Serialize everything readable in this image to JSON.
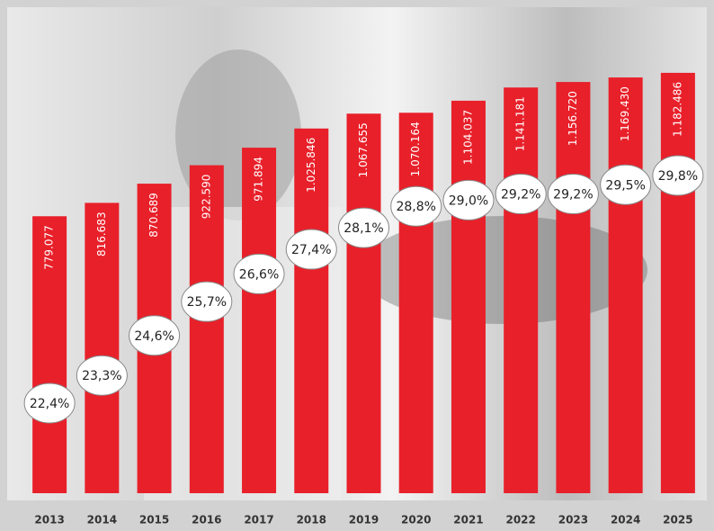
{
  "chart_data": {
    "type": "bar",
    "categories": [
      "2013",
      "2014",
      "2015",
      "2016",
      "2017",
      "2018",
      "2019",
      "2020",
      "2021",
      "2022",
      "2023",
      "2024",
      "2025"
    ],
    "series": [
      {
        "type": "bar",
        "color": "#e8202a",
        "values": [
          779077,
          816683,
          870689,
          922590,
          971894,
          1025846,
          1067655,
          1070164,
          1104037,
          1141181,
          1156720,
          1169430,
          1182486
        ],
        "value_labels": [
          "779.077",
          "816.683",
          "870.689",
          "922.590",
          "971.894",
          "1.025.846",
          "1.067.655",
          "1.070.164",
          "1.104.037",
          "1.141.181",
          "1.156.720",
          "1.169.430",
          "1.182.486"
        ]
      },
      {
        "type": "bubble-label",
        "axis": "y2",
        "color": "#ffffff",
        "values": [
          22.4,
          23.3,
          24.6,
          25.7,
          26.6,
          27.4,
          28.1,
          28.8,
          29.0,
          29.2,
          29.2,
          29.5,
          29.8
        ],
        "value_labels": [
          "22,4%",
          "23,3%",
          "24,6%",
          "25,7%",
          "26,6%",
          "27,4%",
          "28,1%",
          "28,8%",
          "29,0%",
          "29,2%",
          "29,2%",
          "29,5%",
          "29,8%"
        ]
      }
    ],
    "ylim": [
      0,
      1200000
    ],
    "y2lim": [
      20,
      31
    ]
  }
}
